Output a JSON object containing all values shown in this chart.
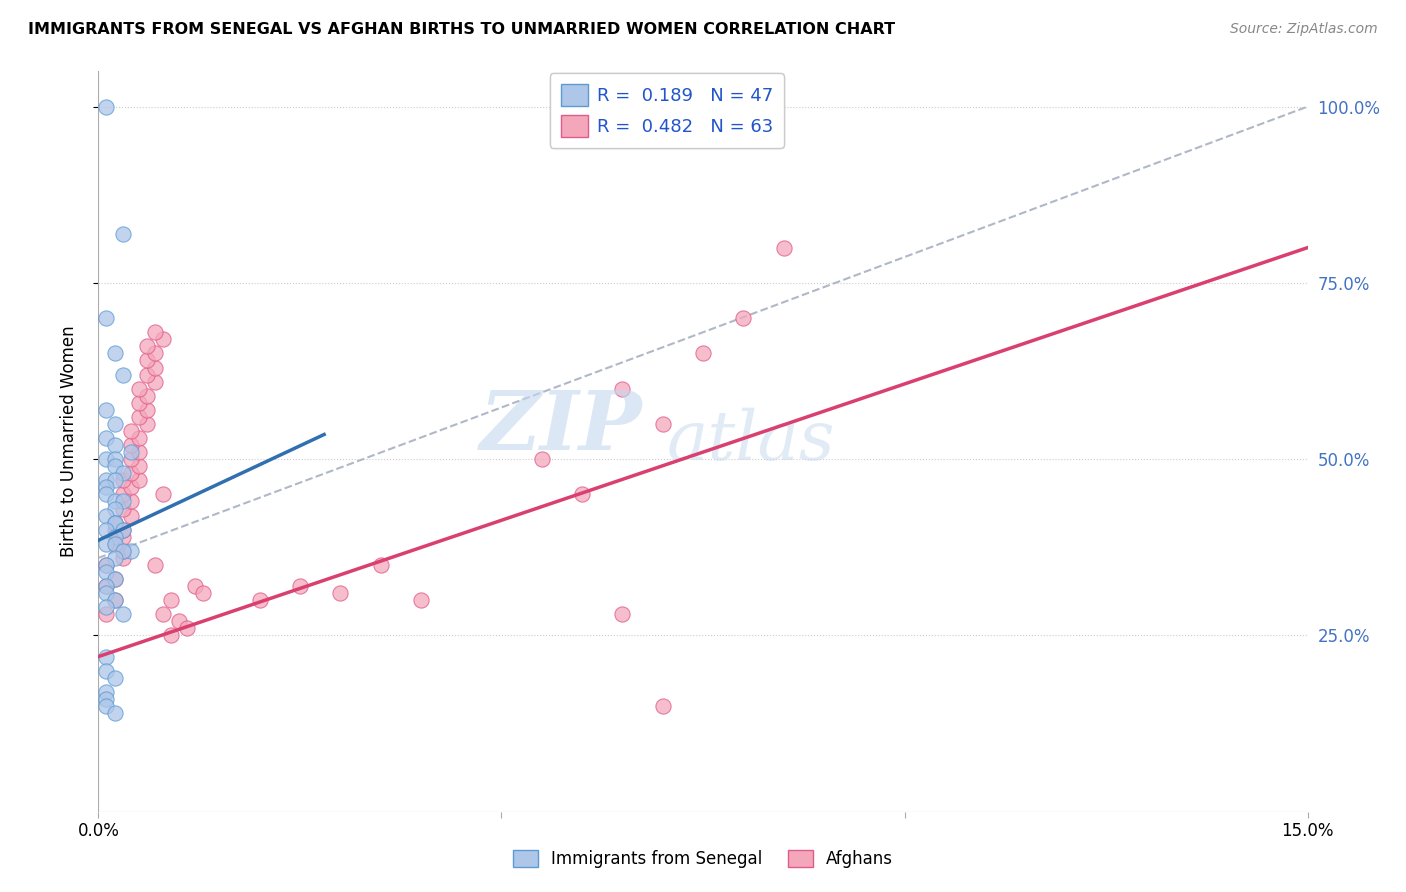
{
  "title": "IMMIGRANTS FROM SENEGAL VS AFGHAN BIRTHS TO UNMARRIED WOMEN CORRELATION CHART",
  "source": "Source: ZipAtlas.com",
  "ylabel": "Births to Unmarried Women",
  "xlim": [
    0.0,
    0.15
  ],
  "ylim": [
    0.0,
    1.05
  ],
  "y_ticks_right": [
    0.25,
    0.5,
    0.75,
    1.0
  ],
  "y_tick_labels_right": [
    "25.0%",
    "50.0%",
    "75.0%",
    "100.0%"
  ],
  "x_ticks": [
    0.0,
    0.15
  ],
  "x_tick_labels": [
    "0.0%",
    "15.0%"
  ],
  "watermark_zip": "ZIP",
  "watermark_atlas": "atlas",
  "legend_text1": "R =  0.189   N = 47",
  "legend_text2": "R =  0.482   N = 63",
  "bottom_legend1": "Immigrants from Senegal",
  "bottom_legend2": "Afghans",
  "color_blue_fill": "#aec6e8",
  "color_blue_edge": "#5b9bd5",
  "color_pink_fill": "#f4a7bb",
  "color_pink_edge": "#e05a8a",
  "color_blue_line": "#3070b0",
  "color_pink_line": "#d94070",
  "color_dashed": "#b0b8c8",
  "legend_label_color": "#2255cc",
  "right_axis_color": "#4472c4",
  "blue_line_x0": 0.0,
  "blue_line_y0": 0.385,
  "blue_line_x1": 0.028,
  "blue_line_y1": 0.535,
  "pink_line_x0": 0.0,
  "pink_line_y0": 0.22,
  "pink_line_x1": 0.15,
  "pink_line_y1": 0.8,
  "dashed_line_x0": 0.0,
  "dashed_line_y0": 0.36,
  "dashed_line_x1": 0.15,
  "dashed_line_y1": 1.0,
  "senegal_x": [
    0.001,
    0.003,
    0.001,
    0.002,
    0.003,
    0.001,
    0.002,
    0.001,
    0.002,
    0.004,
    0.001,
    0.002,
    0.002,
    0.003,
    0.001,
    0.002,
    0.001,
    0.001,
    0.002,
    0.003,
    0.002,
    0.001,
    0.002,
    0.002,
    0.001,
    0.003,
    0.002,
    0.001,
    0.002,
    0.004,
    0.003,
    0.002,
    0.001,
    0.001,
    0.002,
    0.001,
    0.001,
    0.002,
    0.001,
    0.003,
    0.001,
    0.001,
    0.002,
    0.001,
    0.001,
    0.001,
    0.002
  ],
  "senegal_y": [
    1.0,
    0.82,
    0.7,
    0.65,
    0.62,
    0.57,
    0.55,
    0.53,
    0.52,
    0.51,
    0.5,
    0.5,
    0.49,
    0.48,
    0.47,
    0.47,
    0.46,
    0.45,
    0.44,
    0.44,
    0.43,
    0.42,
    0.41,
    0.41,
    0.4,
    0.4,
    0.39,
    0.38,
    0.38,
    0.37,
    0.37,
    0.36,
    0.35,
    0.34,
    0.33,
    0.32,
    0.31,
    0.3,
    0.29,
    0.28,
    0.22,
    0.2,
    0.19,
    0.17,
    0.16,
    0.15,
    0.14
  ],
  "afghan_x": [
    0.001,
    0.001,
    0.002,
    0.001,
    0.002,
    0.003,
    0.002,
    0.003,
    0.002,
    0.003,
    0.002,
    0.003,
    0.004,
    0.003,
    0.004,
    0.003,
    0.004,
    0.003,
    0.005,
    0.004,
    0.005,
    0.004,
    0.005,
    0.004,
    0.005,
    0.004,
    0.006,
    0.005,
    0.006,
    0.005,
    0.006,
    0.005,
    0.007,
    0.006,
    0.007,
    0.006,
    0.007,
    0.006,
    0.008,
    0.007,
    0.008,
    0.007,
    0.009,
    0.008,
    0.009,
    0.01,
    0.011,
    0.012,
    0.013,
    0.02,
    0.025,
    0.03,
    0.035,
    0.04,
    0.055,
    0.06,
    0.065,
    0.07,
    0.075,
    0.08,
    0.085,
    0.065,
    0.07
  ],
  "afghan_y": [
    0.28,
    0.32,
    0.3,
    0.35,
    0.33,
    0.36,
    0.38,
    0.37,
    0.4,
    0.39,
    0.41,
    0.4,
    0.42,
    0.43,
    0.44,
    0.45,
    0.46,
    0.47,
    0.47,
    0.48,
    0.49,
    0.5,
    0.51,
    0.52,
    0.53,
    0.54,
    0.55,
    0.56,
    0.57,
    0.58,
    0.59,
    0.6,
    0.61,
    0.62,
    0.63,
    0.64,
    0.65,
    0.66,
    0.67,
    0.68,
    0.45,
    0.35,
    0.3,
    0.28,
    0.25,
    0.27,
    0.26,
    0.32,
    0.31,
    0.3,
    0.32,
    0.31,
    0.35,
    0.3,
    0.5,
    0.45,
    0.6,
    0.55,
    0.65,
    0.7,
    0.8,
    0.28,
    0.15
  ]
}
